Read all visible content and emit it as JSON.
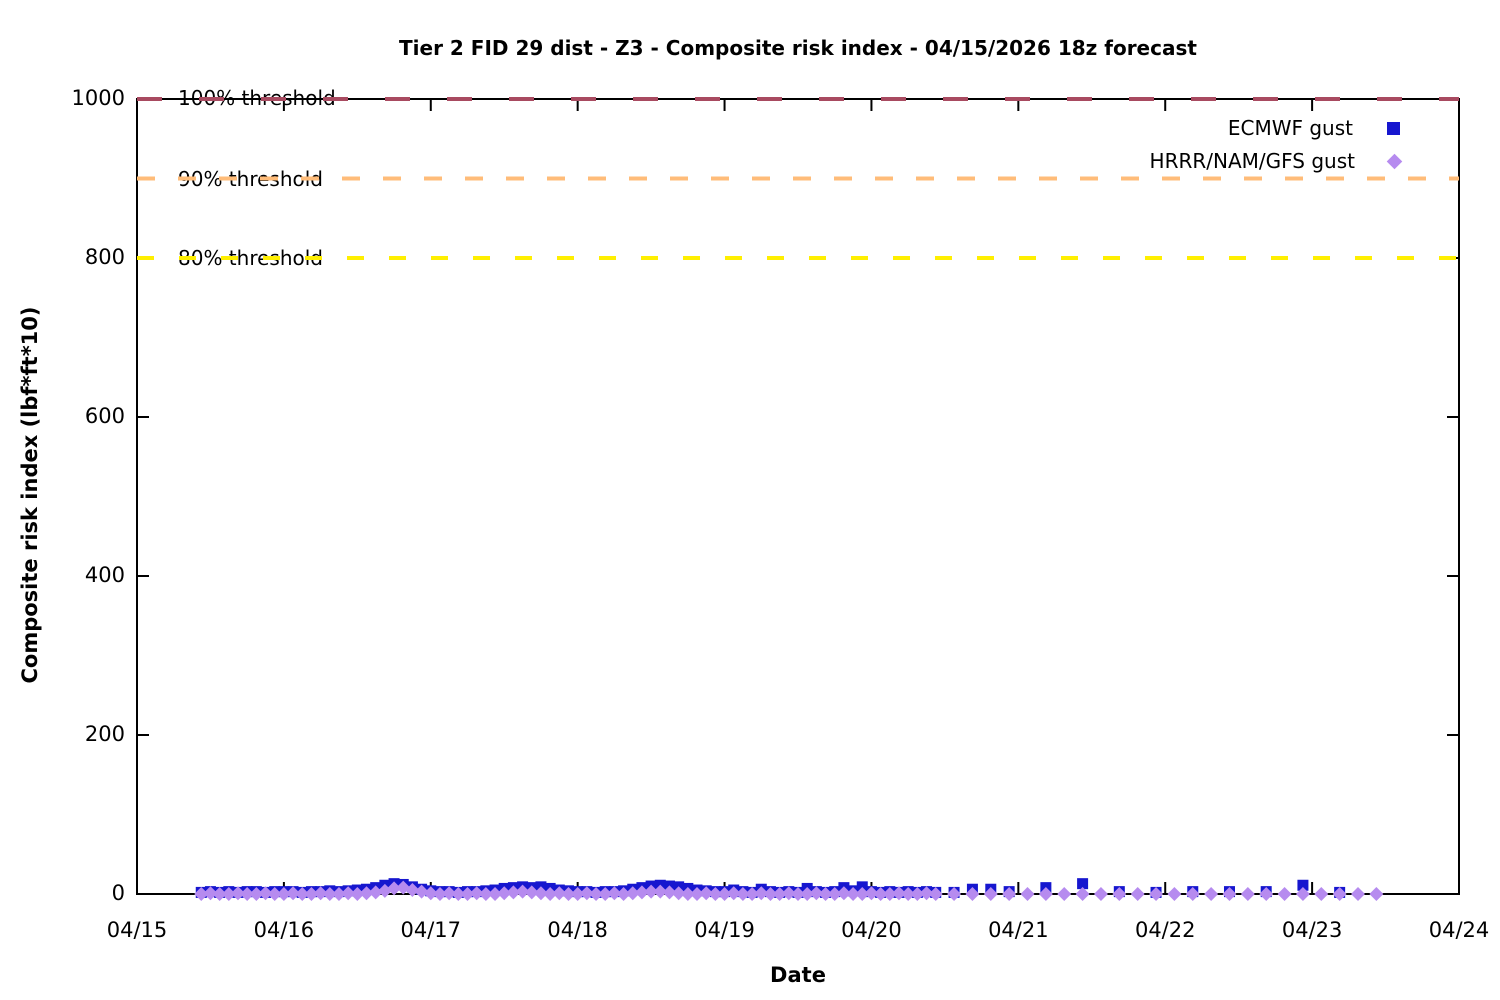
{
  "chart_data": {
    "type": "scatter",
    "title": "Tier 2 FID 29 dist - Z3 - Composite risk index - 04/15/2026 18z forecast",
    "xlabel": "Date",
    "ylabel": "Composite risk index (lbf*ft*10)",
    "x_ticks": [
      "04/15",
      "04/16",
      "04/17",
      "04/18",
      "04/19",
      "04/20",
      "04/21",
      "04/22",
      "04/23",
      "04/24"
    ],
    "y_ticks": [
      0,
      200,
      400,
      600,
      800,
      1000
    ],
    "ylim": [
      0,
      1000
    ],
    "x_range_days": [
      0,
      9
    ],
    "grid": false,
    "thresholds": [
      {
        "label": "100% threshold",
        "value": 1000,
        "color": "#a84a60"
      },
      {
        "label": "90% threshold",
        "value": 900,
        "color": "#ffbc79"
      },
      {
        "label": "80% threshold",
        "value": 800,
        "color": "#ffef00"
      }
    ],
    "legend": {
      "position": "top-right",
      "entries": [
        {
          "label": "ECMWF gust",
          "marker": "square",
          "color": "#1616cf"
        },
        {
          "label": "HRRR/NAM/GFS gust",
          "marker": "diamond",
          "color": "#b68bef"
        }
      ]
    },
    "series": [
      {
        "name": "ECMWF gust",
        "marker": "square",
        "color": "#1616cf",
        "dense": {
          "x_start": 0.4375,
          "x_step": 0.0625,
          "y": [
            2,
            3,
            2,
            3,
            2,
            3,
            3,
            2,
            3,
            3,
            3,
            2,
            3,
            3,
            4,
            3,
            4,
            5,
            6,
            8,
            11,
            13,
            12,
            9,
            6,
            4,
            3,
            3,
            2,
            3,
            3,
            4,
            5,
            7,
            8,
            9,
            8,
            9,
            7,
            5,
            4,
            3,
            3,
            2,
            3,
            3,
            4,
            6,
            8,
            10,
            11,
            10,
            9,
            7,
            5,
            4,
            3,
            3,
            5,
            3,
            2,
            6,
            3,
            2,
            3,
            2,
            7,
            3,
            2,
            3,
            8,
            4,
            9,
            3,
            2,
            3,
            2,
            3,
            2,
            3,
            2
          ]
        },
        "sparse_points": [
          [
            5.5625,
            2
          ],
          [
            5.6875,
            6
          ],
          [
            5.8125,
            6
          ],
          [
            5.9375,
            3
          ],
          [
            6.1875,
            8
          ],
          [
            6.4375,
            13
          ],
          [
            6.6875,
            3
          ],
          [
            6.9375,
            2
          ],
          [
            7.1875,
            3
          ],
          [
            7.4375,
            3
          ],
          [
            7.6875,
            3
          ],
          [
            7.9375,
            11
          ],
          [
            8.1875,
            2
          ]
        ]
      },
      {
        "name": "HRRR/NAM/GFS gust",
        "marker": "diamond",
        "color": "#b68bef",
        "dense": {
          "x_start": 0.4375,
          "x_step": 0.0625,
          "y": [
            0,
            1,
            0,
            0,
            1,
            0,
            0,
            1,
            0,
            0,
            1,
            0,
            0,
            1,
            0,
            0,
            1,
            0,
            1,
            2,
            4,
            7,
            8,
            5,
            3,
            1,
            0,
            1,
            0,
            0,
            1,
            0,
            0,
            1,
            2,
            3,
            2,
            1,
            0,
            1,
            0,
            0,
            1,
            0,
            0,
            1,
            0,
            1,
            2,
            3,
            3,
            2,
            1,
            0,
            0,
            1,
            0,
            0,
            1,
            0,
            0,
            1,
            0,
            0,
            1,
            0,
            0,
            1,
            0,
            0,
            1,
            0,
            0,
            1,
            0,
            0,
            1,
            0,
            0,
            1,
            0
          ]
        },
        "sparse_points": [
          [
            5.5625,
            0
          ],
          [
            5.6875,
            0
          ],
          [
            5.8125,
            0
          ],
          [
            5.9375,
            0
          ],
          [
            6.0625,
            0
          ],
          [
            6.1875,
            0
          ],
          [
            6.3125,
            0
          ],
          [
            6.4375,
            0
          ],
          [
            6.5625,
            0
          ],
          [
            6.6875,
            0
          ],
          [
            6.8125,
            0
          ],
          [
            6.9375,
            0
          ],
          [
            7.0625,
            0
          ],
          [
            7.1875,
            0
          ],
          [
            7.3125,
            0
          ],
          [
            7.4375,
            0
          ],
          [
            7.5625,
            0
          ],
          [
            7.6875,
            0
          ],
          [
            7.8125,
            0
          ],
          [
            7.9375,
            0
          ],
          [
            8.0625,
            0
          ],
          [
            8.1875,
            0
          ],
          [
            8.3125,
            0
          ],
          [
            8.4375,
            0
          ]
        ]
      }
    ]
  }
}
